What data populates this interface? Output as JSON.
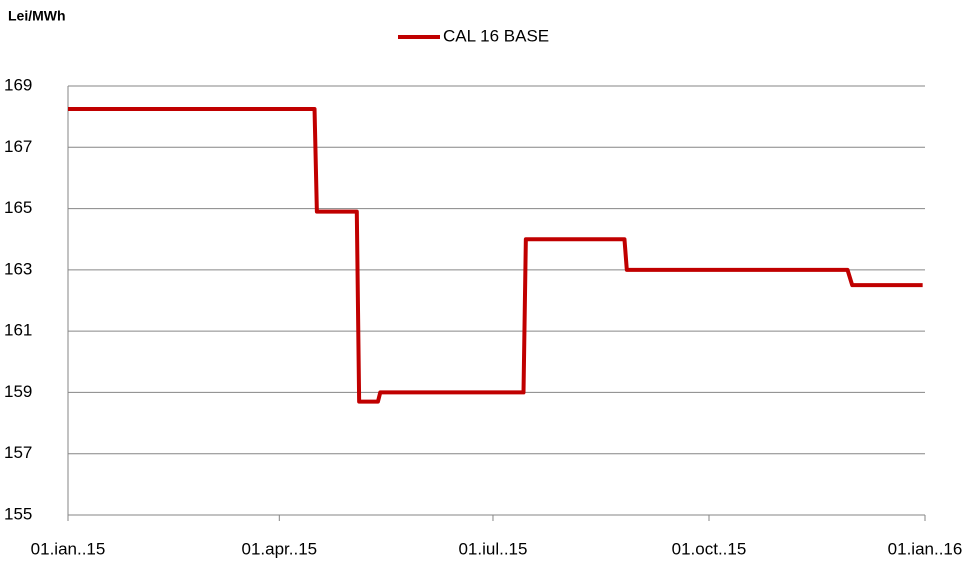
{
  "chart_data": {
    "type": "line",
    "y_label": "Lei/MWh",
    "x": [
      "2015-01-01",
      "2015-04-16",
      "2015-04-17",
      "2015-05-04",
      "2015-05-05",
      "2015-05-13",
      "2015-05-14",
      "2015-07-14",
      "2015-07-15",
      "2015-08-26",
      "2015-08-27",
      "2015-11-29",
      "2015-12-01",
      "2015-12-31"
    ],
    "series": [
      {
        "name": "CAL 16 BASE",
        "color": "#c00000",
        "values": [
          168.25,
          168.25,
          164.9,
          164.9,
          158.7,
          158.7,
          159,
          159,
          164,
          164,
          163,
          163,
          162.5,
          162.5
        ]
      }
    ],
    "xlim": [
      "2015-01-01",
      "2016-01-01"
    ],
    "xticks": [
      {
        "value": "2015-01-01",
        "label": "01.ian..15"
      },
      {
        "value": "2015-04-01",
        "label": "01.apr..15"
      },
      {
        "value": "2015-07-01",
        "label": "01.iul..15"
      },
      {
        "value": "2015-10-01",
        "label": "01.oct..15"
      },
      {
        "value": "2016-01-01",
        "label": "01.ian..16"
      }
    ],
    "ylim": [
      155,
      169
    ],
    "yticks": [
      155,
      157,
      159,
      161,
      163,
      165,
      167,
      169
    ],
    "grid": true,
    "legend": "top"
  }
}
